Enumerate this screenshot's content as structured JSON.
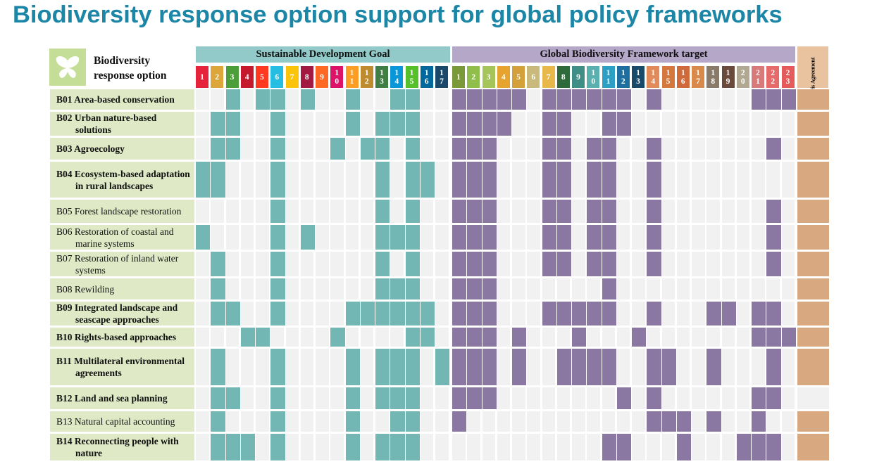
{
  "title": "Biodiversity response option support for global policy frameworks",
  "column_header": {
    "line1": "Biodiversity",
    "line2": "response option"
  },
  "groups": {
    "sdg": "Sustainable Development Goal",
    "gbf": "Global Biodiversity Framework target",
    "paris": "Paris Agreement"
  },
  "sdg_columns": [
    {
      "label": "1",
      "color": "#e5243b"
    },
    {
      "label": "2",
      "color": "#dda63a"
    },
    {
      "label": "3",
      "color": "#4c9f38"
    },
    {
      "label": "4",
      "color": "#c5192d"
    },
    {
      "label": "5",
      "color": "#ff3a21"
    },
    {
      "label": "6",
      "color": "#26bde2"
    },
    {
      "label": "7",
      "color": "#fcc30b"
    },
    {
      "label": "8",
      "color": "#a21942"
    },
    {
      "label": "9",
      "color": "#fd6925"
    },
    {
      "label": "1 0",
      "color": "#dd1367"
    },
    {
      "label": "1 1",
      "color": "#fd9d24"
    },
    {
      "label": "1 2",
      "color": "#bf8b2e"
    },
    {
      "label": "1 3",
      "color": "#3f7e44"
    },
    {
      "label": "1 4",
      "color": "#0a97d9"
    },
    {
      "label": "1 5",
      "color": "#56c02b"
    },
    {
      "label": "1 6",
      "color": "#00689d"
    },
    {
      "label": "1 7",
      "color": "#19486a"
    }
  ],
  "gbf_columns": [
    {
      "label": "1",
      "color": "#7a9a3a"
    },
    {
      "label": "2",
      "color": "#8fbf4a"
    },
    {
      "label": "3",
      "color": "#a5c45a"
    },
    {
      "label": "4",
      "color": "#e6a32e"
    },
    {
      "label": "5",
      "color": "#d4a03a"
    },
    {
      "label": "6",
      "color": "#c9b97a"
    },
    {
      "label": "7",
      "color": "#e8b84a"
    },
    {
      "label": "8",
      "color": "#2f6b3a"
    },
    {
      "label": "9",
      "color": "#3f8f86"
    },
    {
      "label": "1 0",
      "color": "#5ab0ae"
    },
    {
      "label": "1 1",
      "color": "#2b9fc4"
    },
    {
      "label": "1 2",
      "color": "#1e6fa0"
    },
    {
      "label": "1 3",
      "color": "#1a4a6a"
    },
    {
      "label": "1 4",
      "color": "#e28a5a"
    },
    {
      "label": "1 5",
      "color": "#d4783e"
    },
    {
      "label": "1 6",
      "color": "#cf6a3a"
    },
    {
      "label": "1 7",
      "color": "#d98a4a"
    },
    {
      "label": "1 8",
      "color": "#8a7a6a"
    },
    {
      "label": "1 9",
      "color": "#6a4a3a"
    },
    {
      "label": "2 0",
      "color": "#b0a890"
    },
    {
      "label": "2 1",
      "color": "#d97a7a"
    },
    {
      "label": "2 2",
      "color": "#e66a6a"
    },
    {
      "label": "2 3",
      "color": "#e55a5a"
    }
  ],
  "rows": [
    {
      "label": "B01 Area-based conservation",
      "bold": true,
      "sdg": [
        3,
        5,
        6,
        8,
        11,
        14,
        15
      ],
      "gbf": [
        1,
        2,
        3,
        4,
        5,
        7,
        8,
        9,
        10,
        11,
        12,
        14,
        21,
        22,
        23
      ],
      "paris": true
    },
    {
      "label": "B02 Urban nature-based solutions",
      "bold": true,
      "sdg": [
        2,
        3,
        6,
        11,
        13,
        14,
        15
      ],
      "gbf": [
        1,
        2,
        3,
        4,
        7,
        8,
        11,
        12
      ],
      "paris": true
    },
    {
      "label": "B03 Agroecology",
      "bold": true,
      "sdg": [
        2,
        3,
        6,
        10,
        12,
        13,
        15
      ],
      "gbf": [
        1,
        2,
        3,
        7,
        8,
        10,
        11,
        14,
        22
      ],
      "paris": true
    },
    {
      "label": "B04 Ecosystem-based adaptation in rural landscapes",
      "bold": true,
      "sdg": [
        1,
        2,
        6,
        13,
        15,
        16
      ],
      "gbf": [
        1,
        2,
        3,
        7,
        8,
        10,
        11,
        14
      ],
      "paris": true
    },
    {
      "label": "B05 Forest landscape restoration",
      "bold": false,
      "sdg": [
        6,
        13,
        15
      ],
      "gbf": [
        1,
        2,
        3,
        7,
        8,
        10,
        11,
        14,
        22
      ],
      "paris": true
    },
    {
      "label": "B06 Restoration of coastal and marine systems",
      "bold": false,
      "sdg": [
        1,
        6,
        8,
        13,
        14,
        15
      ],
      "gbf": [
        1,
        2,
        3,
        7,
        8,
        10,
        11,
        14,
        22
      ],
      "paris": true
    },
    {
      "label": "B07 Restoration of inland water systems",
      "bold": false,
      "sdg": [
        2,
        6,
        13,
        15
      ],
      "gbf": [
        1,
        2,
        3,
        7,
        8,
        10,
        11,
        14,
        22
      ],
      "paris": true
    },
    {
      "label": "B08 Rewilding",
      "bold": false,
      "sdg": [
        2,
        6,
        13,
        14,
        15
      ],
      "gbf": [
        1,
        2,
        3,
        11
      ],
      "paris": true
    },
    {
      "label": "B09 Integrated landscape and seascape approaches",
      "bold": true,
      "sdg": [
        2,
        3,
        6,
        11,
        12,
        13,
        14,
        15,
        16
      ],
      "gbf": [
        1,
        2,
        3,
        7,
        8,
        9,
        10,
        11,
        14,
        18,
        19,
        21,
        22
      ],
      "paris": true
    },
    {
      "label": "B10 Rights-based approaches",
      "bold": true,
      "sdg": [
        4,
        5,
        10,
        15,
        16
      ],
      "gbf": [
        1,
        2,
        3,
        5,
        9,
        13,
        21,
        22,
        23
      ],
      "paris": true
    },
    {
      "label": "B11 Multilateral environmental agreements",
      "bold": true,
      "sdg": [
        2,
        6,
        11,
        13,
        14,
        15,
        17
      ],
      "gbf": [
        1,
        2,
        3,
        5,
        8,
        9,
        10,
        11,
        14,
        15,
        18,
        22
      ],
      "paris": true
    },
    {
      "label": "B12 Land and sea planning",
      "bold": true,
      "sdg": [
        2,
        3,
        6,
        11,
        13,
        14,
        15
      ],
      "gbf": [
        1,
        2,
        3,
        12,
        14,
        21,
        22
      ],
      "paris": false
    },
    {
      "label": "B13 Natural capital accounting",
      "bold": false,
      "sdg": [
        2,
        6,
        11,
        14,
        15
      ],
      "gbf": [
        1,
        14,
        15,
        16,
        18,
        21
      ],
      "paris": true
    },
    {
      "label": "B14 Reconnecting people with nature",
      "bold": true,
      "sdg": [
        2,
        3,
        4,
        6,
        11,
        13,
        14,
        15
      ],
      "gbf": [
        11,
        12,
        16,
        20,
        21,
        22
      ],
      "paris": true
    }
  ]
}
